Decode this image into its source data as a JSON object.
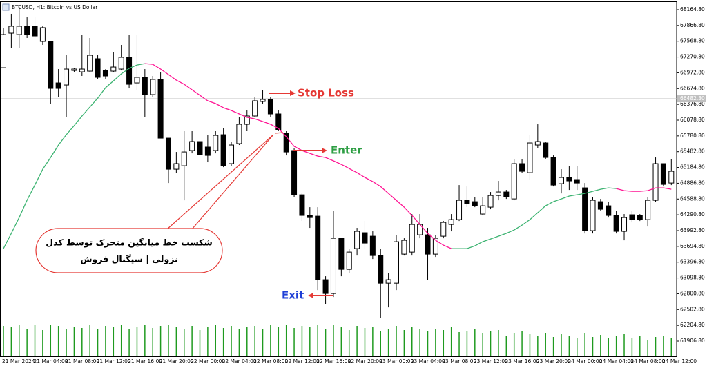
{
  "chart_data": {
    "type": "candlestick",
    "title": "BTCUSD, H1: Bitcoin vs US Dollar",
    "categories": [
      "21 Mar 2024",
      null,
      null,
      null,
      "21 Mar 04:00",
      null,
      null,
      null,
      "21 Mar 08:00",
      null,
      null,
      null,
      "21 Mar 12:00",
      null,
      null,
      null,
      "21 Mar 16:00",
      null,
      null,
      null,
      "21 Mar 20:00",
      null,
      null,
      null,
      "22 Mar 00:00",
      null,
      null,
      null,
      "22 Mar 04:00",
      null,
      null,
      null,
      "22 Mar 08:00",
      null,
      null,
      null,
      "22 Mar 12:00",
      null,
      null,
      null,
      "22 Mar 16:00",
      null,
      null,
      null,
      "22 Mar 20:00",
      null,
      null,
      null,
      "23 Mar 00:00",
      null,
      null,
      null,
      "23 Mar 04:00",
      null,
      null,
      null,
      "23 Mar 08:00",
      null,
      null,
      null,
      "23 Mar 12:00",
      null,
      null,
      null,
      "23 Mar 16:00",
      null,
      null,
      null,
      "23 Mar 20:00",
      null,
      null,
      null,
      "24 Mar 00:00",
      null,
      null,
      null,
      "24 Mar 04:00",
      null,
      null,
      null,
      "24 Mar 08:00",
      null,
      null,
      null,
      "24 Mar 12:00",
      null
    ],
    "open": [
      67069,
      67721,
      67695,
      67852,
      67852,
      67565,
      67565,
      66782,
      66743,
      67017,
      66991,
      67004,
      67239,
      67017,
      67004,
      67043,
      67265,
      66782,
      66887,
      66561,
      66848,
      65739,
      65152,
      65217,
      65505,
      65674,
      65570,
      65505,
      65804,
      65257,
      65635,
      66000,
      66157,
      66431,
      66470,
      66196,
      65830,
      65505,
      64669,
      64279,
      64265,
      63066,
      62805,
      63848,
      63261,
      63653,
      63953,
      63887,
      63522,
      63000,
      63000,
      63548,
      63587,
      63913,
      63913,
      63548,
      63887,
      64109,
      64200,
      64565,
      64539,
      64305,
      64435,
      64656,
      64722,
      64591,
      65257,
      65087,
      65609,
      65648,
      65374,
      64878,
      64996,
      64957,
      64800,
      63992,
      64539,
      64461,
      64279,
      63979,
      64292,
      64279,
      64200,
      64565,
      65257,
      64891
    ],
    "high": [
      67826,
      68087,
      68217,
      68021,
      68021,
      67852,
      67565,
      67043,
      67304,
      67069,
      67695,
      67630,
      67304,
      67043,
      67369,
      67500,
      67695,
      67695,
      67043,
      66913,
      66978,
      65739,
      65478,
      65870,
      65870,
      65739,
      65804,
      65870,
      65935,
      65674,
      66131,
      66261,
      66522,
      66652,
      66522,
      66261,
      65870,
      65544,
      64695,
      64435,
      64435,
      63131,
      64370,
      63848,
      63653,
      64044,
      64174,
      63979,
      63653,
      63196,
      63913,
      63848,
      64305,
      64305,
      64044,
      63913,
      64174,
      64305,
      64852,
      64826,
      64630,
      64630,
      64722,
      64931,
      64761,
      65348,
      65348,
      65804,
      66000,
      65674,
      65413,
      65152,
      65217,
      65217,
      64891,
      64630,
      64591,
      64539,
      64370,
      64305,
      64370,
      64305,
      64630,
      65374,
      65257,
      65348
    ],
    "low": [
      67069,
      67435,
      67435,
      67630,
      67630,
      67500,
      66391,
      66522,
      66131,
      66991,
      66913,
      66978,
      66848,
      66848,
      66978,
      67017,
      66678,
      66652,
      66131,
      66522,
      65739,
      64891,
      65087,
      64565,
      65452,
      65348,
      65283,
      65452,
      65191,
      65217,
      65609,
      65870,
      66131,
      66391,
      66131,
      65870,
      65413,
      64630,
      64174,
      64044,
      62870,
      62609,
      62740,
      63131,
      63196,
      63522,
      63653,
      63457,
      62349,
      62544,
      62870,
      63522,
      63522,
      63848,
      63066,
      63496,
      63848,
      63979,
      64174,
      64435,
      64435,
      64279,
      64396,
      64565,
      64591,
      64565,
      65087,
      64957,
      65544,
      65348,
      64826,
      64695,
      64761,
      64761,
      63939,
      63939,
      64370,
      64239,
      63939,
      63809,
      64148,
      64174,
      64070,
      64539,
      64826,
      64852
    ],
    "close": [
      67695,
      67852,
      67852,
      67695,
      67669,
      67826,
      66678,
      66678,
      67043,
      67043,
      67043,
      67304,
      66887,
      66913,
      67082,
      67265,
      66756,
      66887,
      66561,
      66848,
      65739,
      65152,
      65257,
      65478,
      65674,
      65426,
      65413,
      65791,
      65217,
      65609,
      66000,
      66157,
      66444,
      66470,
      66196,
      65896,
      65478,
      64669,
      64279,
      64239,
      63066,
      62805,
      63848,
      63261,
      63587,
      63979,
      63757,
      63522,
      63000,
      63066,
      63783,
      63809,
      64109,
      64109,
      63548,
      63848,
      64148,
      64200,
      64565,
      64500,
      64461,
      64461,
      64656,
      64722,
      64630,
      65257,
      65113,
      65648,
      65674,
      65374,
      64852,
      64996,
      64931,
      64891,
      63992,
      64565,
      64396,
      64279,
      63979,
      64239,
      64200,
      64200,
      64565,
      65257,
      64865,
      65113
    ],
    "up_color": "#ffffff",
    "down_color": "#000000",
    "wick_color": "#000000",
    "moving_average": {
      "values": [
        63653,
        63940,
        64239,
        64565,
        64852,
        65152,
        65374,
        65609,
        65804,
        65974,
        66157,
        66326,
        66495,
        66691,
        66821,
        66952,
        67056,
        67121,
        67147,
        67134,
        67043,
        66939,
        66834,
        66756,
        66652,
        66548,
        66444,
        66391,
        66313,
        66261,
        66196,
        66131,
        66104,
        66052,
        66000,
        65922,
        65765,
        65583,
        65505,
        65452,
        65400,
        65374,
        65309,
        65243,
        65165,
        65087,
        64996,
        64917,
        64826,
        64695,
        64565,
        64435,
        64279,
        64109,
        63940,
        63809,
        63718,
        63653,
        63653,
        63653,
        63705,
        63783,
        63835,
        63887,
        63940,
        64005,
        64096,
        64200,
        64331,
        64461,
        64539,
        64591,
        64644,
        64669,
        64695,
        64735,
        64774,
        64800,
        64787,
        64748,
        64735,
        64735,
        64748,
        64800,
        64800,
        64774
      ],
      "color_changes": [
        {
          "index": 0,
          "color": "#3cb371"
        },
        {
          "index": 18,
          "color": "#ff1493"
        },
        {
          "index": 57,
          "color": "#3cb371"
        },
        {
          "index": 78,
          "color": "#ff1493"
        }
      ]
    },
    "volume": {
      "values": [
        44,
        42,
        46,
        40,
        45,
        38,
        46,
        44,
        40,
        43,
        41,
        45,
        39,
        44,
        42,
        46,
        40,
        43,
        45,
        41,
        44,
        46,
        42,
        40,
        44,
        38,
        43,
        45,
        41,
        44,
        39,
        42,
        44,
        40,
        45,
        43,
        46,
        41,
        44,
        42,
        45,
        40,
        46,
        43,
        38,
        44,
        41,
        42,
        36,
        40,
        44,
        38,
        42,
        39,
        36,
        40,
        38,
        42,
        35,
        37,
        40,
        33,
        36,
        38,
        30,
        34,
        36,
        32,
        30,
        34,
        28,
        32,
        30,
        26,
        33,
        28,
        31,
        27,
        29,
        32,
        26,
        30,
        24,
        28,
        30,
        26
      ],
      "color": "#1f9a1f",
      "lim": [
        0,
        56
      ]
    },
    "ylim": [
      61620,
      68282
    ],
    "yticks": [
      {
        "value": 68164.8,
        "label": "68164.80"
      },
      {
        "value": 67866.8,
        "label": "67866.80"
      },
      {
        "value": 67568.8,
        "label": "67568.80"
      },
      {
        "value": 67270.8,
        "label": "67270.80"
      },
      {
        "value": 66972.8,
        "label": "66972.80"
      },
      {
        "value": 66674.8,
        "label": "66674.80"
      },
      {
        "value": 66376.8,
        "label": "66376.80"
      },
      {
        "value": 66078.8,
        "label": "66078.80"
      },
      {
        "value": 65780.8,
        "label": "65780.80"
      },
      {
        "value": 65482.8,
        "label": "65482.80"
      },
      {
        "value": 65184.8,
        "label": "65184.80"
      },
      {
        "value": 64886.8,
        "label": "64886.80"
      },
      {
        "value": 64588.8,
        "label": "64588.80"
      },
      {
        "value": 64290.8,
        "label": "64290.80"
      },
      {
        "value": 63992.8,
        "label": "63992.80"
      },
      {
        "value": 63694.8,
        "label": "63694.80"
      },
      {
        "value": 63396.8,
        "label": "63396.80"
      },
      {
        "value": 63098.8,
        "label": "63098.80"
      },
      {
        "value": 62800.8,
        "label": "62800.80"
      },
      {
        "value": 62502.8,
        "label": "62502.80"
      },
      {
        "value": 62204.8,
        "label": "62204.80"
      },
      {
        "value": 61906.8,
        "label": "61906.80"
      }
    ],
    "current_price": {
      "value": 66482.3,
      "label": "66482.30"
    },
    "annotations": {
      "stop_loss": {
        "text": "Stop Loss",
        "color": "#e53935"
      },
      "enter": {
        "text": "Enter",
        "color": "#2e9e44"
      },
      "exit": {
        "text": "Exit",
        "color": "#1e3fd6"
      },
      "callout": {
        "lines": [
          "شکست خط میانگین متحرک توسط کدل",
          "نزولی | سیگنال فروش"
        ],
        "color": "#e53935"
      }
    }
  }
}
